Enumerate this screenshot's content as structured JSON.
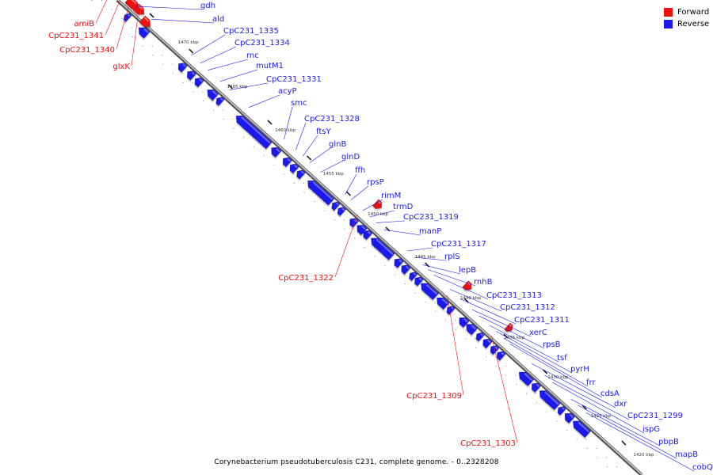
{
  "legend": {
    "forward_label": "Forward",
    "reverse_label": "Reverse",
    "forward_color": "#ee1111",
    "reverse_color": "#1a1aee"
  },
  "caption": "Corynebacterium pseudotuberculosis C231, complete genome. - 0..2328208",
  "scale_labels": [
    "1470 kbp",
    "1465 kbp",
    "1460 kbp",
    "1455 kbp",
    "1450 kbp",
    "1445 kbp",
    "1440 kbp",
    "1435 kbp",
    "1430 kbp",
    "1425 kbp",
    "1420 kbp"
  ],
  "reverse_genes": [
    "gdh",
    "ald",
    "CpC231_1335",
    "CpC231_1334",
    "rnc",
    "mutM1",
    "CpC231_1331",
    "acyP",
    "smc",
    "CpC231_1328",
    "ftsY",
    "glnB",
    "glnD",
    "ffh",
    "rpsP",
    "rimM",
    "trmD",
    "CpC231_1319",
    "manP",
    "CpC231_1317",
    "rplS",
    "lepB",
    "rnhB",
    "CpC231_1313",
    "CpC231_1312",
    "CpC231_1311",
    "xerC",
    "rpsB",
    "tsf",
    "pyrH",
    "frr",
    "cdsA",
    "dxr",
    "CpC231_1299",
    "ispG",
    "pbpB",
    "mapB",
    "cobQ"
  ],
  "forward_genes": [
    "amiB",
    "CpC231_1341",
    "CpC231_1340",
    "glxK",
    "CpC231_1322",
    "CpC231_1309",
    "CpC231_1303"
  ]
}
